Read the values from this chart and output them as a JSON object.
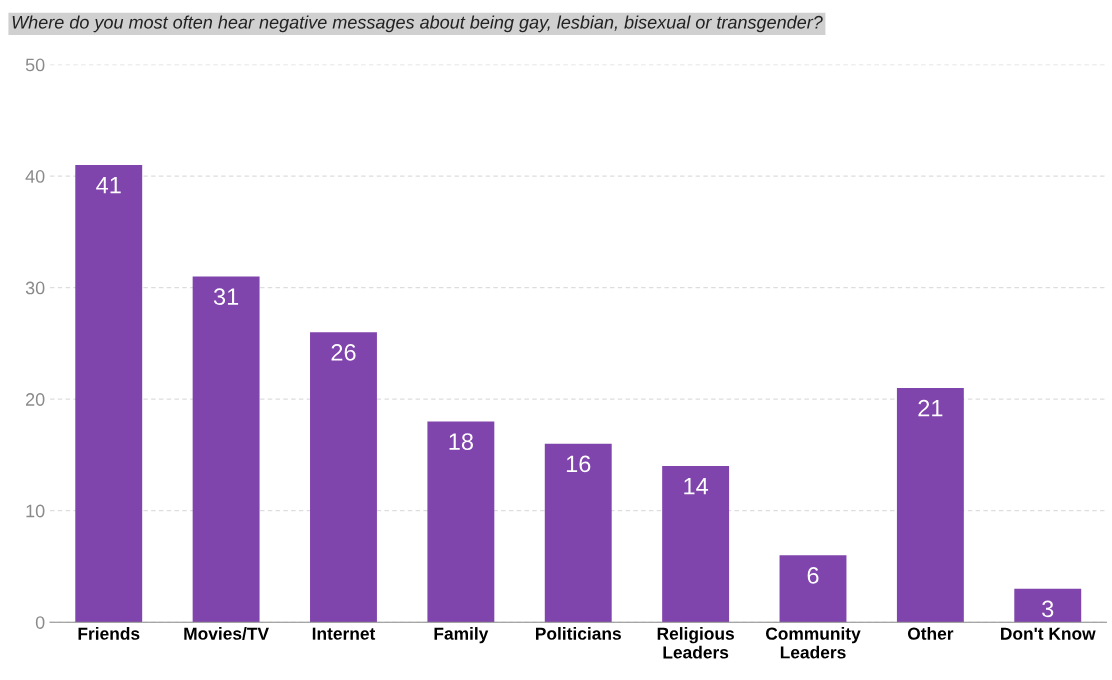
{
  "chart_data": {
    "type": "bar",
    "title": "Where do you most often hear negative messages about being gay, lesbian, bisexual or transgender?",
    "categories": [
      "Friends",
      "Movies/TV",
      "Internet",
      "Family",
      "Politicians",
      "Religious\nLeaders",
      "Community\nLeaders",
      "Other",
      "Don't Know"
    ],
    "values": [
      41,
      31,
      26,
      18,
      16,
      14,
      6,
      21,
      3
    ],
    "color": "#8044ad",
    "ylim": [
      0,
      50
    ],
    "yticks": [
      0,
      10,
      20,
      30,
      40,
      50
    ],
    "grid": "y",
    "data_labels": true
  }
}
